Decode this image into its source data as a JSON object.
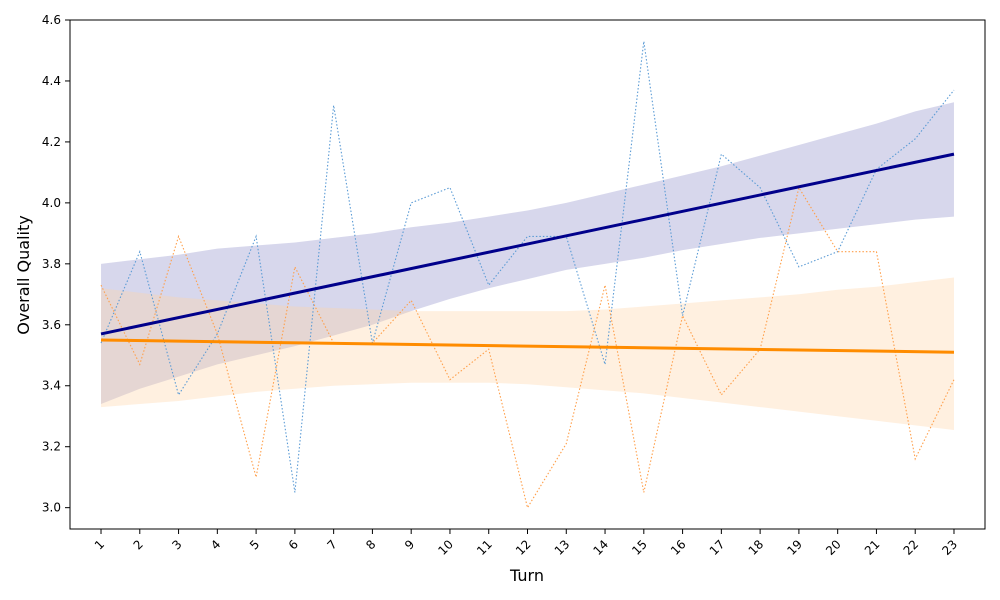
{
  "chart_data": {
    "type": "line",
    "title": "",
    "xlabel": "Turn",
    "ylabel": "Overall Quality",
    "x": [
      1,
      2,
      3,
      4,
      5,
      6,
      7,
      8,
      9,
      10,
      11,
      12,
      13,
      14,
      15,
      16,
      17,
      18,
      19,
      20,
      21,
      22,
      23
    ],
    "xlim": [
      0.2,
      23.8
    ],
    "ylim": [
      2.93,
      4.6
    ],
    "yticks": [
      3.0,
      3.2,
      3.4,
      3.6,
      3.8,
      4.0,
      4.2,
      4.4,
      4.6
    ],
    "ytick_labels": [
      "3.0",
      "3.2",
      "3.4",
      "3.6",
      "3.8",
      "4.0",
      "4.2",
      "4.4",
      "4.6"
    ],
    "xtick_labels": [
      "1",
      "2",
      "3",
      "4",
      "5",
      "6",
      "7",
      "8",
      "9",
      "10",
      "11",
      "12",
      "13",
      "14",
      "15",
      "16",
      "17",
      "18",
      "19",
      "20",
      "21",
      "22",
      "23"
    ],
    "grid": false,
    "series": [
      {
        "name": "series-blue",
        "raw_color": "#5b9bd5",
        "values": [
          3.54,
          3.84,
          3.37,
          3.57,
          3.89,
          3.05,
          4.32,
          3.54,
          4.0,
          4.05,
          3.73,
          3.89,
          3.89,
          3.47,
          4.53,
          3.63,
          4.16,
          4.05,
          3.79,
          3.84,
          4.11,
          4.21,
          4.37
        ],
        "trend": {
          "start": 3.57,
          "end": 4.16,
          "color": "#00008b"
        },
        "band": {
          "color": "#8c8cc8",
          "upper": [
            3.8,
            3.815,
            3.83,
            3.85,
            3.86,
            3.87,
            3.885,
            3.9,
            3.92,
            3.935,
            3.955,
            3.975,
            4.0,
            4.03,
            4.06,
            4.09,
            4.12,
            4.155,
            4.19,
            4.225,
            4.26,
            4.3,
            4.33
          ],
          "lower": [
            3.34,
            3.39,
            3.43,
            3.47,
            3.5,
            3.53,
            3.565,
            3.6,
            3.645,
            3.685,
            3.72,
            3.75,
            3.78,
            3.8,
            3.82,
            3.845,
            3.865,
            3.885,
            3.9,
            3.915,
            3.93,
            3.945,
            3.955
          ]
        }
      },
      {
        "name": "series-orange",
        "raw_color": "#ff9f4a",
        "values": [
          3.73,
          3.47,
          3.89,
          3.57,
          3.1,
          3.79,
          3.54,
          3.54,
          3.68,
          3.42,
          3.52,
          3.0,
          3.21,
          3.73,
          3.05,
          3.63,
          3.37,
          3.52,
          4.05,
          3.84,
          3.84,
          3.16,
          3.42
        ],
        "trend": {
          "start": 3.55,
          "end": 3.51,
          "color": "#ff8c00"
        },
        "band": {
          "color": "#ffd3a6",
          "upper": [
            3.72,
            3.705,
            3.69,
            3.68,
            3.67,
            3.66,
            3.655,
            3.65,
            3.645,
            3.645,
            3.645,
            3.645,
            3.645,
            3.65,
            3.66,
            3.67,
            3.68,
            3.69,
            3.7,
            3.715,
            3.725,
            3.74,
            3.755
          ],
          "lower": [
            3.33,
            3.34,
            3.35,
            3.365,
            3.38,
            3.39,
            3.4,
            3.405,
            3.41,
            3.41,
            3.41,
            3.405,
            3.395,
            3.385,
            3.375,
            3.36,
            3.345,
            3.33,
            3.315,
            3.3,
            3.285,
            3.27,
            3.255
          ]
        }
      }
    ]
  }
}
